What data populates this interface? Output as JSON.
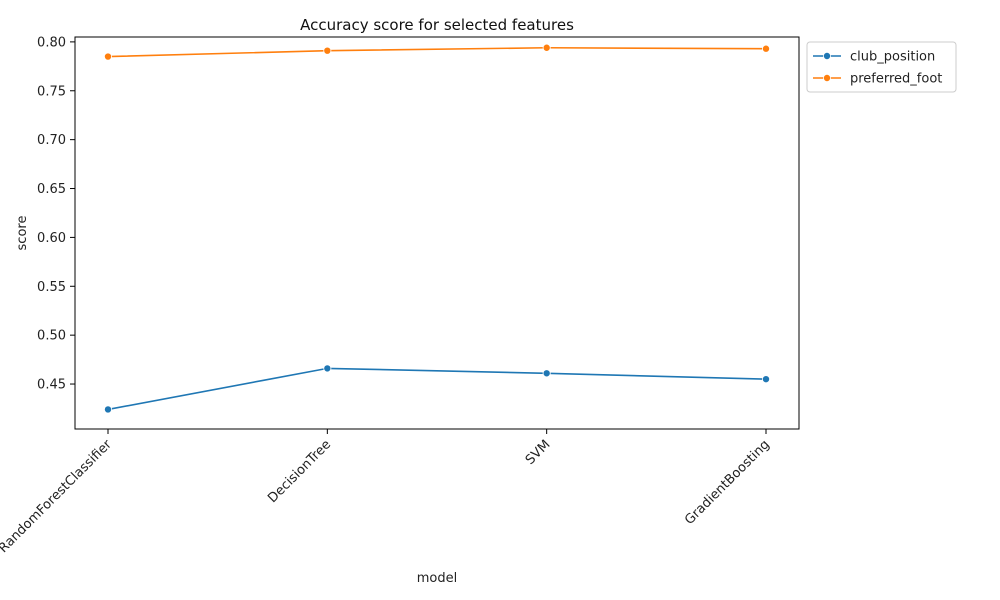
{
  "chart_data": {
    "type": "line",
    "title": "Accuracy score for selected features",
    "xlabel": "model",
    "ylabel": "score",
    "categories": [
      "RandomForestClassifier",
      "DecisionTree",
      "SVM",
      "GradientBoosting"
    ],
    "ylim": [
      0.404,
      0.805
    ],
    "yticks": [
      0.45,
      0.5,
      0.55,
      0.6,
      0.65,
      0.7,
      0.75,
      0.8
    ],
    "ytick_labels": [
      "0.45",
      "0.50",
      "0.55",
      "0.60",
      "0.65",
      "0.70",
      "0.75",
      "0.80"
    ],
    "grid": false,
    "legend_position": "outside upper right",
    "series": [
      {
        "name": "club_position",
        "color": "#1f77b4",
        "values": [
          0.424,
          0.466,
          0.461,
          0.455
        ]
      },
      {
        "name": "preferred_foot",
        "color": "#ff7f0e",
        "values": [
          0.785,
          0.791,
          0.794,
          0.793
        ]
      }
    ]
  }
}
